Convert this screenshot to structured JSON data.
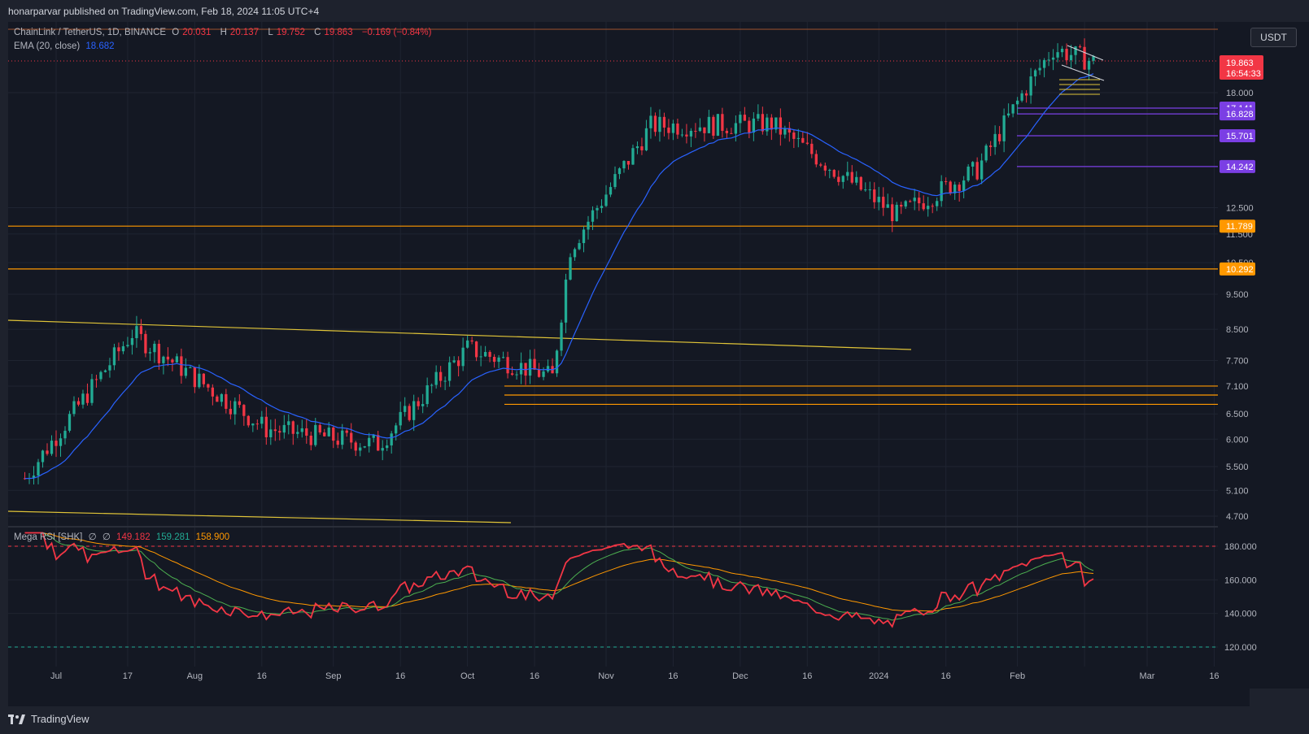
{
  "header": {
    "published": "honarparvar published on TradingView.com, Feb 18, 2024 11:05 UTC+4"
  },
  "legend": {
    "symbol": "ChainLink / TetherUS, 1D, BINANCE",
    "o_label": "O",
    "o_value": "20.031",
    "h_label": "H",
    "h_value": "20.137",
    "l_label": "L",
    "l_value": "19.752",
    "c_label": "C",
    "c_value": "19.863",
    "change": "−0.169 (−0.84%)",
    "ema_label": "EMA (20, close)",
    "ema_value": "18.682"
  },
  "rsi_legend": {
    "name": "Mega RSI [SHK]",
    "v1": "149.182",
    "v2": "159.281",
    "v3": "158.900"
  },
  "currency_button": "USDT",
  "price_axis": {
    "ticks": [
      "18.000",
      "12.500",
      "11.500",
      "10.500",
      "9.500",
      "8.500",
      "7.700",
      "7.100",
      "6.500",
      "6.000",
      "5.500",
      "5.100",
      "4.700"
    ],
    "last_price": "19.863",
    "countdown": "16:54:33",
    "level_labels": [
      {
        "text": "17.141",
        "color": "#7b3fe4"
      },
      {
        "text": "16.828",
        "color": "#7b3fe4"
      },
      {
        "text": "15.701",
        "color": "#7b3fe4"
      },
      {
        "text": "14.242",
        "color": "#7b3fe4"
      },
      {
        "text": "11.789",
        "color": "#ff9800"
      },
      {
        "text": "10.292",
        "color": "#ff9800"
      }
    ]
  },
  "rsi_axis": {
    "ticks": [
      "180.000",
      "160.000",
      "140.000",
      "120.000"
    ]
  },
  "time_axis": {
    "labels": [
      "Jul",
      "17",
      "Aug",
      "16",
      "Sep",
      "16",
      "Oct",
      "16",
      "Nov",
      "16",
      "Dec",
      "16",
      "2024",
      "16",
      "Feb",
      "Mar",
      "16"
    ]
  },
  "footer": {
    "brand": "TradingView"
  },
  "colors": {
    "up": "#22ab94",
    "down": "#f23645",
    "ema": "#2962ff",
    "rsi": "#f23645",
    "rsi_fast": "#4caf50",
    "rsi_slow": "#ff9800",
    "level_orange": "#ff9800",
    "level_purple": "#7b3fe4",
    "trendline": "#e0c438"
  },
  "chart_data": {
    "type": "candlestick",
    "symbol": "ChainLink / TetherUS",
    "interval": "1D",
    "y_scale": "log",
    "ylim": [
      4.5,
      22
    ],
    "x": [
      "2023-06-23",
      "2024-02-18"
    ],
    "key_ohlc": [
      {
        "date": "2023-06-24",
        "close": 5.3
      },
      {
        "date": "2023-07-18",
        "close": 8.4
      },
      {
        "date": "2023-08-17",
        "close": 6.2
      },
      {
        "date": "2023-09-11",
        "close": 5.9
      },
      {
        "date": "2023-10-01",
        "close": 8.0
      },
      {
        "date": "2023-10-20",
        "close": 7.3
      },
      {
        "date": "2023-10-24",
        "close": 11.0
      },
      {
        "date": "2023-11-11",
        "close": 16.2
      },
      {
        "date": "2023-12-08",
        "close": 16.3
      },
      {
        "date": "2024-01-05",
        "close": 12.2
      },
      {
        "date": "2024-01-23",
        "close": 14.1
      },
      {
        "date": "2024-02-03",
        "close": 18.3
      },
      {
        "date": "2024-02-09",
        "close": 20.7
      },
      {
        "date": "2024-02-18",
        "close": 19.863
      }
    ],
    "horizontal_levels": [
      17.141,
      16.828,
      15.701,
      14.242,
      11.789,
      10.292,
      7.1,
      6.9,
      6.7
    ],
    "ema_20_last": 18.682,
    "rsi": {
      "name": "Mega RSI [SHK]",
      "ylim": [
        112,
        188
      ],
      "overbought": 180,
      "oversold": 120,
      "last_values": [
        149.182,
        159.281,
        158.9
      ]
    }
  }
}
